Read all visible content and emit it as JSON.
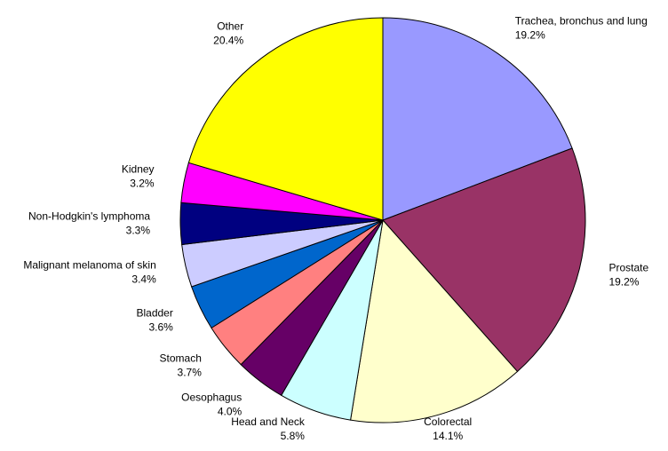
{
  "chart_data": {
    "type": "pie",
    "categories": [
      "Trachea, bronchus and lung",
      "Prostate",
      "Colorectal",
      "Head and Neck",
      "Oesophagus",
      "Stomach",
      "Bladder",
      "Malignant melanoma of skin",
      "Non-Hodgkin's lymphoma",
      "Kidney",
      "Other"
    ],
    "values": [
      19.2,
      19.2,
      14.1,
      5.8,
      4.0,
      3.7,
      3.6,
      3.4,
      3.3,
      3.2,
      20.4
    ],
    "value_labels": [
      "19.2%",
      "19.2%",
      "14.1%",
      "5.8%",
      "4.0%",
      "3.7%",
      "3.6%",
      "3.4%",
      "3.3%",
      "3.2%",
      "20.4%"
    ],
    "colors": [
      "#9999ff",
      "#993366",
      "#ffffcc",
      "#ccffff",
      "#660066",
      "#ff8080",
      "#0066cc",
      "#ccccff",
      "#000080",
      "#ff00ff",
      "#ffff00"
    ]
  }
}
